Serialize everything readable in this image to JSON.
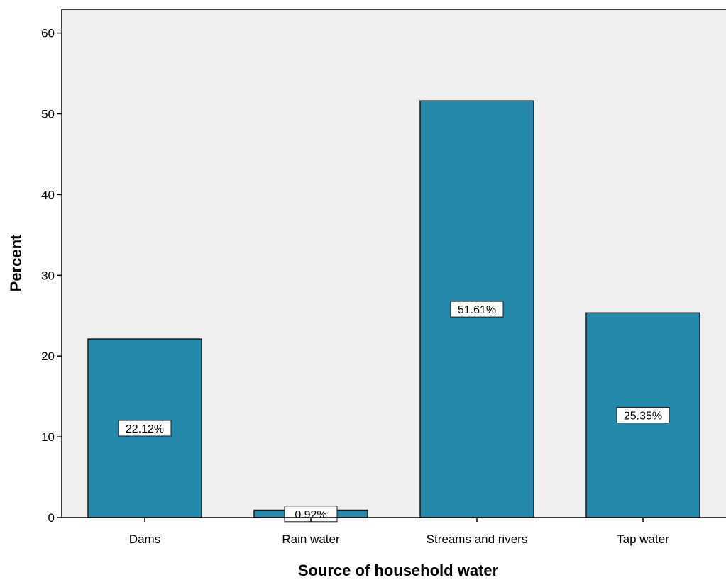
{
  "chart_data": {
    "type": "bar",
    "categories": [
      "Dams",
      "Rain water",
      "Streams and rivers",
      "Tap water"
    ],
    "values": [
      22.12,
      0.92,
      51.61,
      25.35
    ],
    "data_labels": [
      "22.12%",
      "0.92%",
      "51.61%",
      "25.35%"
    ],
    "xlabel": "Source of household water",
    "ylabel": "Percent",
    "ylim": [
      0,
      60
    ],
    "yticks": [
      0,
      10,
      20,
      30,
      40,
      50,
      60
    ],
    "grid": false,
    "colors": {
      "plot_background": "#efefef",
      "bar_fill": "#2589ab",
      "bar_stroke": "#1a1a1a",
      "axis": "#000000",
      "label_box": "#ffffff"
    }
  }
}
